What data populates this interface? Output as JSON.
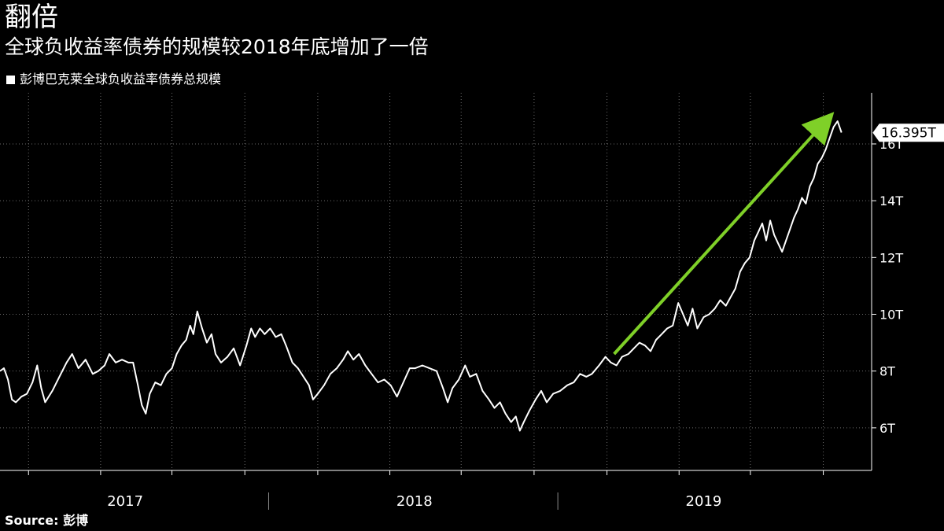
{
  "header": {
    "title": "翻倍",
    "subtitle": "全球负收益率债券的规模较2018年底增加了一倍"
  },
  "legend": {
    "label": "彭博巴克莱全球负收益率债券总规模"
  },
  "footer": {
    "source": "Source: 彭博"
  },
  "chart_data": {
    "type": "line",
    "title": "翻倍",
    "subtitle": "全球负收益率债券的规模较2018年底增加了一倍",
    "ylabel": "",
    "xlabel": "",
    "y_unit": "T",
    "ylim": [
      4.5,
      17.8
    ],
    "y_ticks": [
      6,
      8,
      10,
      12,
      14,
      16
    ],
    "y_tick_labels": [
      "6T",
      "8T",
      "10T",
      "12T",
      "14T",
      "16T"
    ],
    "x_range": [
      "2016-07-27",
      "2019-08-01"
    ],
    "x_year_labels": [
      {
        "label": "2017",
        "center": "2017-01-01"
      },
      {
        "label": "2018",
        "center": "2018-01-01"
      },
      {
        "label": "2019",
        "center": "2019-01-01"
      }
    ],
    "x_year_separators": [
      "2017-07-01",
      "2018-07-01"
    ],
    "x_month_gridlines": [
      "2016-09-01",
      "2016-12-01",
      "2017-03-01",
      "2017-06-01",
      "2017-09-01",
      "2017-12-01",
      "2018-03-01",
      "2018-06-01",
      "2018-09-01",
      "2018-12-01",
      "2019-03-01",
      "2019-06-01"
    ],
    "last_value_label": "16.395T",
    "last_value": 16.395,
    "grid": true,
    "legend_position": "top-left",
    "series": [
      {
        "name": "彭博巴克莱全球负收益率债券总规模",
        "color": "#ffffff",
        "points": [
          [
            "2016-07-27",
            8.0
          ],
          [
            "2016-08-01",
            8.1
          ],
          [
            "2016-08-06",
            7.7
          ],
          [
            "2016-08-11",
            7.0
          ],
          [
            "2016-08-16",
            6.9
          ],
          [
            "2016-08-23",
            7.1
          ],
          [
            "2016-08-30",
            7.2
          ],
          [
            "2016-09-06",
            7.6
          ],
          [
            "2016-09-12",
            8.2
          ],
          [
            "2016-09-17",
            7.4
          ],
          [
            "2016-09-22",
            6.9
          ],
          [
            "2016-10-01",
            7.3
          ],
          [
            "2016-10-10",
            7.8
          ],
          [
            "2016-10-19",
            8.3
          ],
          [
            "2016-10-26",
            8.6
          ],
          [
            "2016-11-03",
            8.1
          ],
          [
            "2016-11-12",
            8.4
          ],
          [
            "2016-11-21",
            7.9
          ],
          [
            "2016-11-28",
            8.0
          ],
          [
            "2016-12-06",
            8.2
          ],
          [
            "2016-12-12",
            8.6
          ],
          [
            "2016-12-20",
            8.3
          ],
          [
            "2016-12-28",
            8.4
          ],
          [
            "2017-01-05",
            8.3
          ],
          [
            "2017-01-11",
            8.3
          ],
          [
            "2017-01-17",
            7.5
          ],
          [
            "2017-01-22",
            6.8
          ],
          [
            "2017-01-27",
            6.5
          ],
          [
            "2017-02-01",
            7.2
          ],
          [
            "2017-02-08",
            7.6
          ],
          [
            "2017-02-15",
            7.5
          ],
          [
            "2017-02-22",
            7.9
          ],
          [
            "2017-03-01",
            8.1
          ],
          [
            "2017-03-07",
            8.6
          ],
          [
            "2017-03-13",
            8.9
          ],
          [
            "2017-03-19",
            9.1
          ],
          [
            "2017-03-24",
            9.6
          ],
          [
            "2017-03-28",
            9.3
          ],
          [
            "2017-04-02",
            10.1
          ],
          [
            "2017-04-08",
            9.5
          ],
          [
            "2017-04-14",
            9.0
          ],
          [
            "2017-04-20",
            9.3
          ],
          [
            "2017-04-25",
            8.6
          ],
          [
            "2017-05-02",
            8.3
          ],
          [
            "2017-05-10",
            8.5
          ],
          [
            "2017-05-18",
            8.8
          ],
          [
            "2017-05-26",
            8.2
          ],
          [
            "2017-06-03",
            8.9
          ],
          [
            "2017-06-09",
            9.5
          ],
          [
            "2017-06-14",
            9.2
          ],
          [
            "2017-06-20",
            9.5
          ],
          [
            "2017-06-26",
            9.3
          ],
          [
            "2017-07-03",
            9.5
          ],
          [
            "2017-07-10",
            9.2
          ],
          [
            "2017-07-17",
            9.3
          ],
          [
            "2017-07-23",
            8.9
          ],
          [
            "2017-07-31",
            8.3
          ],
          [
            "2017-08-07",
            8.1
          ],
          [
            "2017-08-14",
            7.8
          ],
          [
            "2017-08-21",
            7.5
          ],
          [
            "2017-08-26",
            7.0
          ],
          [
            "2017-09-01",
            7.2
          ],
          [
            "2017-09-09",
            7.5
          ],
          [
            "2017-09-17",
            7.9
          ],
          [
            "2017-09-25",
            8.1
          ],
          [
            "2017-10-03",
            8.4
          ],
          [
            "2017-10-09",
            8.7
          ],
          [
            "2017-10-16",
            8.4
          ],
          [
            "2017-10-23",
            8.6
          ],
          [
            "2017-10-31",
            8.2
          ],
          [
            "2017-11-08",
            7.9
          ],
          [
            "2017-11-16",
            7.6
          ],
          [
            "2017-11-24",
            7.7
          ],
          [
            "2017-12-02",
            7.5
          ],
          [
            "2017-12-10",
            7.1
          ],
          [
            "2017-12-18",
            7.6
          ],
          [
            "2017-12-26",
            8.1
          ],
          [
            "2018-01-02",
            8.1
          ],
          [
            "2018-01-11",
            8.2
          ],
          [
            "2018-01-20",
            8.1
          ],
          [
            "2018-01-29",
            8.0
          ],
          [
            "2018-02-06",
            7.4
          ],
          [
            "2018-02-12",
            6.9
          ],
          [
            "2018-02-18",
            7.4
          ],
          [
            "2018-02-26",
            7.7
          ],
          [
            "2018-03-06",
            8.2
          ],
          [
            "2018-03-12",
            7.8
          ],
          [
            "2018-03-20",
            7.9
          ],
          [
            "2018-03-28",
            7.3
          ],
          [
            "2018-04-05",
            7.0
          ],
          [
            "2018-04-12",
            6.7
          ],
          [
            "2018-04-19",
            6.9
          ],
          [
            "2018-04-26",
            6.5
          ],
          [
            "2018-05-03",
            6.2
          ],
          [
            "2018-05-09",
            6.4
          ],
          [
            "2018-05-14",
            5.9
          ],
          [
            "2018-05-19",
            6.2
          ],
          [
            "2018-05-26",
            6.6
          ],
          [
            "2018-06-03",
            7.0
          ],
          [
            "2018-06-10",
            7.3
          ],
          [
            "2018-06-17",
            6.9
          ],
          [
            "2018-06-25",
            7.2
          ],
          [
            "2018-07-04",
            7.3
          ],
          [
            "2018-07-13",
            7.5
          ],
          [
            "2018-07-21",
            7.6
          ],
          [
            "2018-07-29",
            7.9
          ],
          [
            "2018-08-06",
            7.8
          ],
          [
            "2018-08-13",
            7.9
          ],
          [
            "2018-08-22",
            8.2
          ],
          [
            "2018-08-30",
            8.5
          ],
          [
            "2018-09-06",
            8.3
          ],
          [
            "2018-09-13",
            8.2
          ],
          [
            "2018-09-20",
            8.5
          ],
          [
            "2018-09-28",
            8.6
          ],
          [
            "2018-10-05",
            8.8
          ],
          [
            "2018-10-12",
            9.0
          ],
          [
            "2018-10-19",
            8.9
          ],
          [
            "2018-10-26",
            8.7
          ],
          [
            "2018-11-02",
            9.1
          ],
          [
            "2018-11-09",
            9.3
          ],
          [
            "2018-11-16",
            9.5
          ],
          [
            "2018-11-23",
            9.6
          ],
          [
            "2018-11-30",
            10.4
          ],
          [
            "2018-12-06",
            10.0
          ],
          [
            "2018-12-12",
            9.6
          ],
          [
            "2018-12-18",
            10.2
          ],
          [
            "2018-12-24",
            9.5
          ],
          [
            "2019-01-01",
            9.9
          ],
          [
            "2019-01-08",
            10.0
          ],
          [
            "2019-01-15",
            10.2
          ],
          [
            "2019-01-22",
            10.5
          ],
          [
            "2019-01-29",
            10.3
          ],
          [
            "2019-02-04",
            10.6
          ],
          [
            "2019-02-10",
            10.9
          ],
          [
            "2019-02-16",
            11.5
          ],
          [
            "2019-02-22",
            11.8
          ],
          [
            "2019-02-28",
            12.0
          ],
          [
            "2019-03-06",
            12.6
          ],
          [
            "2019-03-11",
            12.9
          ],
          [
            "2019-03-16",
            13.2
          ],
          [
            "2019-03-21",
            12.6
          ],
          [
            "2019-03-26",
            13.3
          ],
          [
            "2019-03-31",
            12.8
          ],
          [
            "2019-04-05",
            12.5
          ],
          [
            "2019-04-10",
            12.2
          ],
          [
            "2019-04-15",
            12.6
          ],
          [
            "2019-04-20",
            13.0
          ],
          [
            "2019-04-25",
            13.4
          ],
          [
            "2019-04-30",
            13.7
          ],
          [
            "2019-05-05",
            14.1
          ],
          [
            "2019-05-10",
            13.9
          ],
          [
            "2019-05-15",
            14.5
          ],
          [
            "2019-05-20",
            14.8
          ],
          [
            "2019-05-25",
            15.3
          ],
          [
            "2019-05-30",
            15.5
          ],
          [
            "2019-06-04",
            15.8
          ],
          [
            "2019-06-09",
            16.2
          ],
          [
            "2019-06-14",
            16.6
          ],
          [
            "2019-06-19",
            16.8
          ],
          [
            "2019-06-24",
            16.4
          ]
        ]
      }
    ],
    "annotations": [
      {
        "type": "arrow",
        "color": "#7fd028",
        "from": [
          "2018-09-10",
          8.6
        ],
        "to": [
          "2019-06-04",
          16.8
        ]
      }
    ]
  }
}
